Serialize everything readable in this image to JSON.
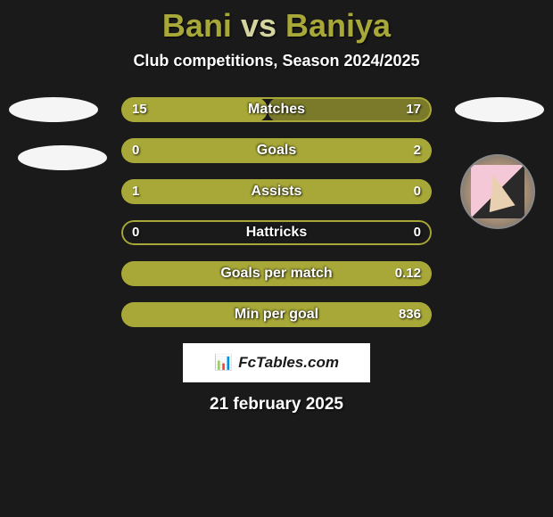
{
  "title": {
    "player1": "Bani",
    "vs_text": "vs",
    "player2": "Baniya"
  },
  "subtitle": "Club competitions, Season 2024/2025",
  "colors": {
    "accent": "#a8a838",
    "accent_light": "#d4d47a",
    "background": "#1a1a1a",
    "text_light": "#ffffff",
    "badge_bg": "#f5f5f5"
  },
  "stats": [
    {
      "label": "Matches",
      "left_value": "15",
      "right_value": "17",
      "left_fill_pct": 47,
      "right_fill_pct": 53,
      "left_color": "#a8a838",
      "right_color": "#7a7a2a"
    },
    {
      "label": "Goals",
      "left_value": "0",
      "right_value": "2",
      "left_fill_pct": 0,
      "right_fill_pct": 100,
      "left_color": "#a8a838",
      "right_color": "#a8a838"
    },
    {
      "label": "Assists",
      "left_value": "1",
      "right_value": "0",
      "left_fill_pct": 100,
      "right_fill_pct": 0,
      "left_color": "#a8a838",
      "right_color": "#a8a838"
    },
    {
      "label": "Hattricks",
      "left_value": "0",
      "right_value": "0",
      "left_fill_pct": 0,
      "right_fill_pct": 0,
      "left_color": "#a8a838",
      "right_color": "#a8a838"
    },
    {
      "label": "Goals per match",
      "left_value": "",
      "right_value": "0.12",
      "left_fill_pct": 0,
      "right_fill_pct": 100,
      "left_color": "#a8a838",
      "right_color": "#a8a838"
    },
    {
      "label": "Min per goal",
      "left_value": "",
      "right_value": "836",
      "left_fill_pct": 0,
      "right_fill_pct": 100,
      "left_color": "#a8a838",
      "right_color": "#a8a838"
    }
  ],
  "footer": {
    "brand_icon": "📊",
    "brand_text": "FcTables.com",
    "date": "21 february 2025"
  }
}
